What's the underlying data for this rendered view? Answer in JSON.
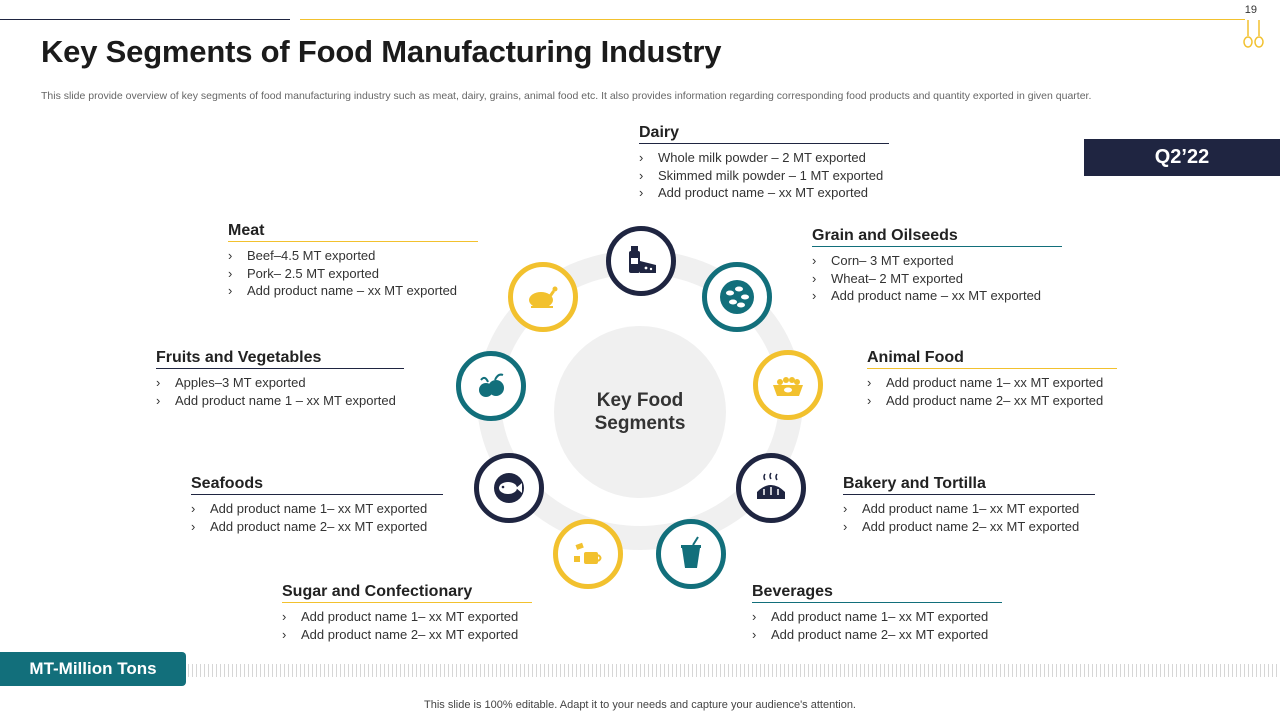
{
  "page_number": "19",
  "title": "Key Segments of Food Manufacturing Industry",
  "description": "This slide provide overview of key segments of food manufacturing industry such as meat, dairy, grains, animal food etc. It also provides information regarding corresponding food products and quantity exported in given quarter.",
  "quarter": "Q2’22",
  "center_label": "Key Food\nSegments",
  "segments": {
    "dairy": {
      "title": "Dairy",
      "items": [
        "Whole milk powder – 2 MT exported",
        "Skimmed milk powder – 1 MT exported",
        "Add product name – xx MT exported"
      ]
    },
    "grain": {
      "title": "Grain and Oilseeds",
      "items": [
        "Corn– 3 MT exported",
        "Wheat– 2 MT exported",
        "Add product name – xx MT exported"
      ]
    },
    "meat": {
      "title": "Meat",
      "items": [
        "Beef–4.5 MT exported",
        "Pork– 2.5 MT exported",
        "Add product name – xx MT exported"
      ]
    },
    "fruits": {
      "title": "Fruits and Vegetables",
      "items": [
        "Apples–3 MT exported",
        "Add product name 1 – xx MT exported"
      ]
    },
    "animal": {
      "title": "Animal Food",
      "items": [
        "Add product name 1– xx MT exported",
        "Add product name 2– xx MT exported"
      ]
    },
    "seafoods": {
      "title": "Seafoods",
      "items": [
        "Add product name 1– xx MT exported",
        "Add product name 2– xx MT exported"
      ]
    },
    "bakery": {
      "title": "Bakery and Tortilla",
      "items": [
        "Add product name 1– xx MT exported",
        "Add product name 2– xx MT exported"
      ]
    },
    "sugar": {
      "title": "Sugar and Confectionary",
      "items": [
        "Add product name 1– xx MT exported",
        "Add product name 2– xx MT exported"
      ]
    },
    "beverages": {
      "title": "Beverages",
      "items": [
        "Add product name 1– xx MT exported",
        "Add product name 2– xx MT exported"
      ]
    }
  },
  "chevron": "›",
  "unit_note": "MT-Million  Tons",
  "footer": "This slide is 100% editable. Adapt it to your needs and capture your audience's attention.",
  "icons": {
    "dairy": "milk-cheese-icon",
    "grain": "grains-icon",
    "meat": "roast-chicken-icon",
    "fruits": "fruit-basket-icon",
    "animal": "pet-food-bowl-icon",
    "seafoods": "fish-icon",
    "bakery": "bread-icon",
    "sugar": "candy-cup-icon",
    "beverages": "drink-cup-icon"
  },
  "colors": {
    "navy": "#1f2541",
    "gold": "#f2c12e",
    "teal": "#126f7b",
    "ring": "#f0f0f0"
  }
}
